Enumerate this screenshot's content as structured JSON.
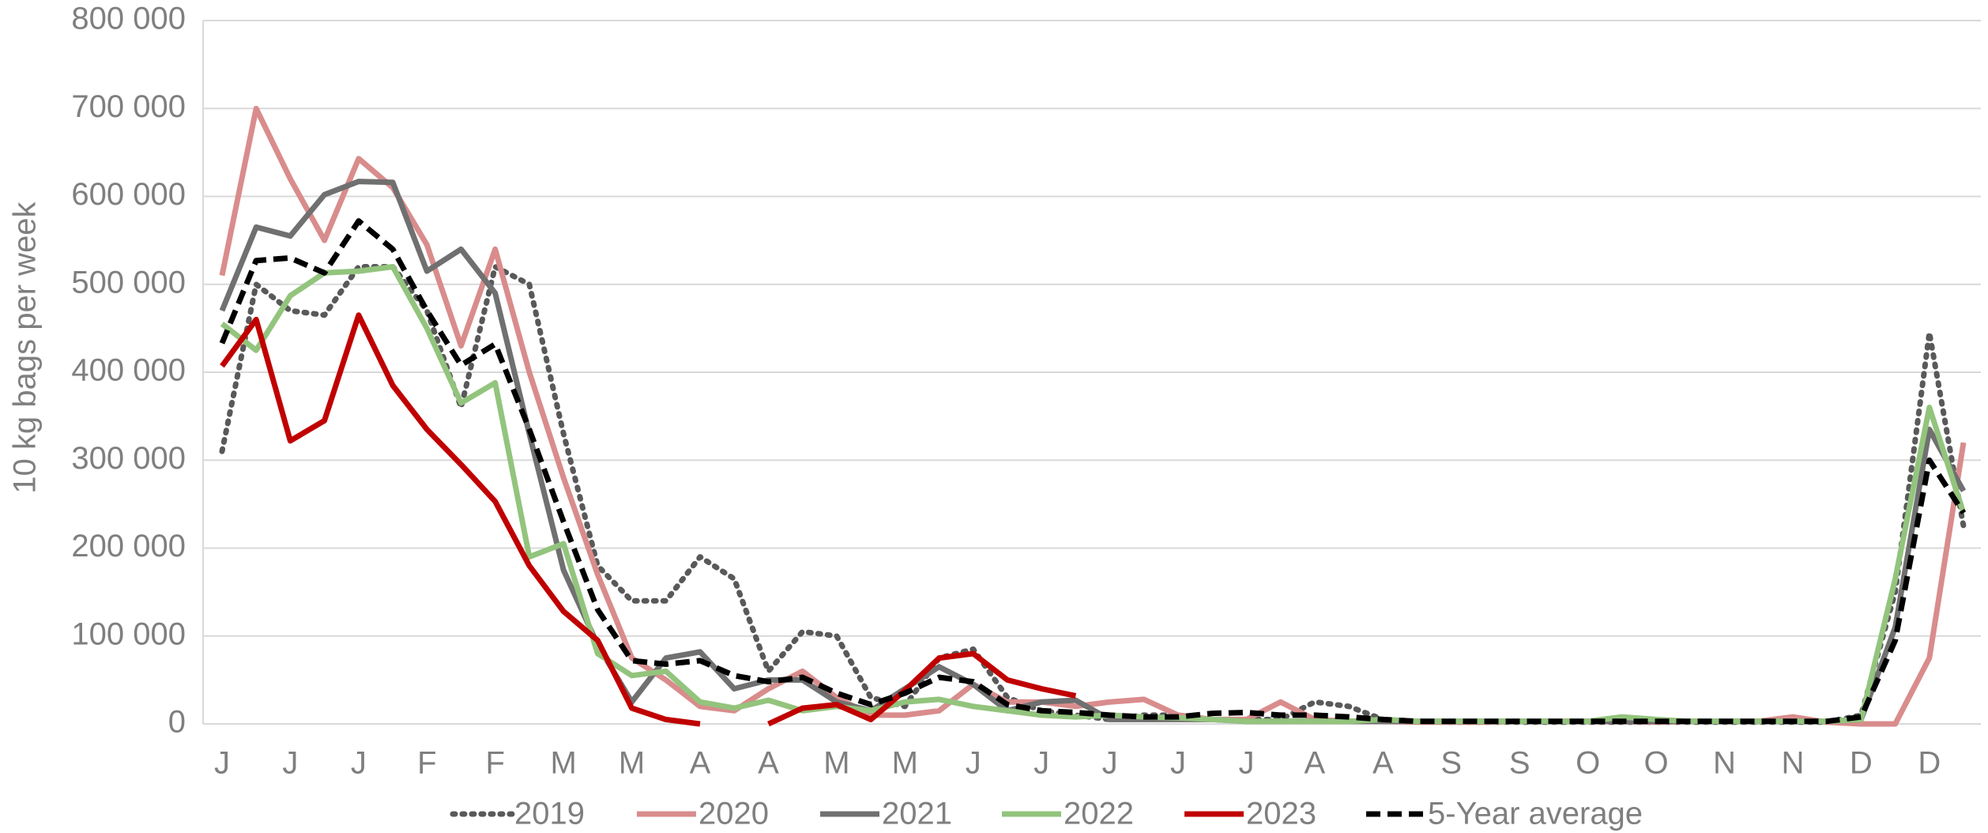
{
  "chart_data": {
    "type": "line",
    "y_label": "10 kg bags per week",
    "categories": [
      "J",
      null,
      "J",
      null,
      "J",
      null,
      "F",
      null,
      "F",
      null,
      "M",
      null,
      "M",
      null,
      "A",
      null,
      "A",
      null,
      "M",
      null,
      "M",
      null,
      "J",
      null,
      "J",
      null,
      "J",
      null,
      "J",
      null,
      "J",
      null,
      "A",
      null,
      "A",
      null,
      "S",
      null,
      "S",
      null,
      "O",
      null,
      "O",
      null,
      "N",
      null,
      "N",
      null,
      "D",
      null,
      "D",
      null
    ],
    "ylim": [
      0,
      800000
    ],
    "yticks": [
      0,
      {
        "value": 100000,
        "label": "100 000"
      },
      {
        "value": 200000,
        "label": "200 000"
      },
      {
        "value": 300000,
        "label": "300 000"
      },
      {
        "value": 400000,
        "label": "400 000"
      },
      {
        "value": 500000,
        "label": "500 000"
      },
      {
        "value": 600000,
        "label": "600 000"
      },
      {
        "value": 700000,
        "label": "700 000"
      },
      {
        "value": 800000,
        "label": "800 000"
      }
    ],
    "grid": true,
    "legend": "bottom",
    "series": [
      {
        "name": "2019",
        "color": "#595959",
        "dash": "dotted",
        "values": [
          310000,
          500000,
          470000,
          465000,
          520000,
          520000,
          470000,
          360000,
          520000,
          500000,
          330000,
          180000,
          140000,
          140000,
          190000,
          165000,
          60000,
          105000,
          100000,
          30000,
          20000,
          75000,
          85000,
          30000,
          15000,
          10000,
          5000,
          10000,
          10000,
          5000,
          5000,
          5000,
          25000,
          20000,
          5000,
          3000,
          2000,
          2000,
          2000,
          2000,
          2000,
          2000,
          2000,
          2000,
          2000,
          2000,
          2000,
          2000,
          10000,
          150000,
          445000,
          225000
        ]
      },
      {
        "name": "2020",
        "color": "#d98c8c",
        "dash": "solid",
        "values": [
          510000,
          700000,
          620000,
          550000,
          643000,
          610000,
          545000,
          430000,
          540000,
          400000,
          280000,
          170000,
          75000,
          50000,
          20000,
          15000,
          40000,
          60000,
          30000,
          10000,
          10000,
          15000,
          45000,
          25000,
          25000,
          20000,
          25000,
          28000,
          10000,
          5000,
          5000,
          25000,
          5000,
          3000,
          3000,
          2000,
          2000,
          2000,
          3000,
          3000,
          3000,
          3000,
          2000,
          3000,
          3000,
          3000,
          8000,
          2000,
          0,
          0,
          75000,
          320000
        ]
      },
      {
        "name": "2021",
        "color": "#707070",
        "dash": "solid",
        "values": [
          470000,
          565000,
          555000,
          602000,
          617000,
          616000,
          515000,
          540000,
          490000,
          330000,
          175000,
          90000,
          25000,
          75000,
          82000,
          40000,
          50000,
          50000,
          25000,
          15000,
          40000,
          65000,
          45000,
          15000,
          25000,
          27000,
          5000,
          5000,
          5000,
          5000,
          3000,
          3000,
          3000,
          3000,
          3000,
          3000,
          3000,
          3000,
          3000,
          3000,
          3000,
          3000,
          3000,
          3000,
          3000,
          3000,
          3000,
          3000,
          5000,
          110000,
          335000,
          265000
        ]
      },
      {
        "name": "2022",
        "color": "#93c47d",
        "dash": "solid",
        "values": [
          455000,
          425000,
          487000,
          513000,
          515000,
          520000,
          450000,
          365000,
          388000,
          190000,
          205000,
          80000,
          55000,
          60000,
          25000,
          18000,
          27000,
          15000,
          20000,
          15000,
          25000,
          28000,
          20000,
          15000,
          10000,
          8000,
          10000,
          8000,
          7000,
          5000,
          3000,
          3000,
          3000,
          3000,
          5000,
          3000,
          3000,
          3000,
          3000,
          3000,
          3000,
          8000,
          5000,
          3000,
          3000,
          3000,
          3000,
          3000,
          5000,
          165000,
          360000,
          240000
        ]
      },
      {
        "name": "2023",
        "color": "#c00000",
        "dash": "solid",
        "values": [
          407000,
          460000,
          322000,
          345000,
          465000,
          385000,
          335000,
          295000,
          253000,
          180000,
          128000,
          95000,
          18000,
          5000,
          0,
          null,
          0,
          18000,
          22000,
          5000,
          38000,
          75000,
          80000,
          50000,
          40000,
          32000,
          null,
          null,
          null,
          null,
          null,
          null,
          null,
          null,
          null,
          null,
          null,
          null,
          null,
          null,
          null,
          null,
          null,
          null,
          null,
          null,
          null,
          null,
          null,
          null,
          null,
          null
        ]
      },
      {
        "name": "5-Year average",
        "color": "#000000",
        "dash": "dashed",
        "values": [
          433000,
          527000,
          530000,
          513000,
          572000,
          540000,
          470000,
          408000,
          432000,
          335000,
          230000,
          130000,
          72000,
          68000,
          72000,
          55000,
          48000,
          53000,
          35000,
          22000,
          35000,
          53000,
          48000,
          22000,
          15000,
          13000,
          10000,
          8000,
          8000,
          12000,
          13000,
          10000,
          10000,
          8000,
          5000,
          3000,
          3000,
          3000,
          3000,
          3000,
          3000,
          3000,
          3000,
          3000,
          3000,
          3000,
          3000,
          3000,
          8000,
          95000,
          300000,
          240000
        ]
      }
    ]
  }
}
